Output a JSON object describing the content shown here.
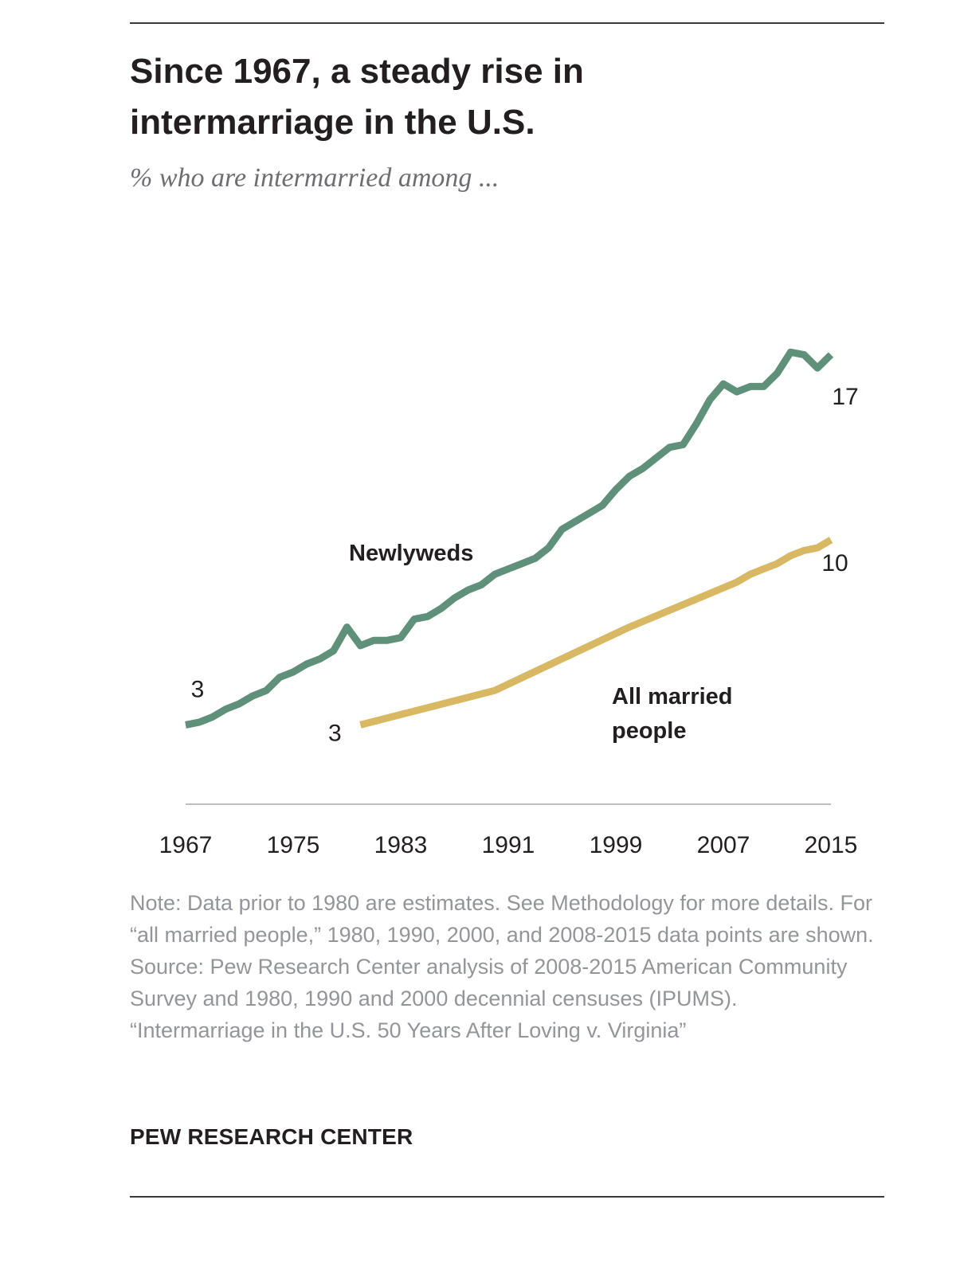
{
  "header": {
    "title": "Since 1967, a steady rise in intermarriage in the U.S.",
    "subtitle": "% who are intermarried among ..."
  },
  "chart_data": {
    "type": "line",
    "title": "Since 1967, a steady rise in intermarriage in the U.S.",
    "subtitle": "% who are intermarried among ...",
    "xlabel": "",
    "ylabel": "",
    "xlim": [
      1967,
      2015
    ],
    "ylim": [
      0,
      18
    ],
    "grid": false,
    "legend": "direct labels on lines",
    "x_ticks": [
      "1967",
      "1975",
      "1983",
      "1991",
      "1999",
      "2007",
      "2015"
    ],
    "series": [
      {
        "name": "Newlyweds",
        "color": "#5f9079",
        "start_label": "3",
        "end_label": "17",
        "x": [
          1967,
          1968,
          1969,
          1970,
          1971,
          1972,
          1973,
          1974,
          1975,
          1976,
          1977,
          1978,
          1979,
          1980,
          1981,
          1982,
          1983,
          1984,
          1985,
          1986,
          1987,
          1988,
          1989,
          1990,
          1991,
          1992,
          1993,
          1994,
          1995,
          1996,
          1997,
          1998,
          1999,
          2000,
          2001,
          2002,
          2003,
          2004,
          2005,
          2006,
          2007,
          2008,
          2009,
          2010,
          2011,
          2012,
          2013,
          2014,
          2015
        ],
        "values": [
          3.0,
          3.1,
          3.3,
          3.6,
          3.8,
          4.1,
          4.3,
          4.8,
          5.0,
          5.3,
          5.5,
          5.8,
          6.7,
          6.0,
          6.2,
          6.2,
          6.3,
          7.0,
          7.1,
          7.4,
          7.8,
          8.1,
          8.3,
          8.7,
          8.9,
          9.1,
          9.3,
          9.7,
          10.4,
          10.7,
          11.0,
          11.3,
          11.9,
          12.4,
          12.7,
          13.1,
          13.5,
          13.6,
          14.4,
          15.3,
          15.9,
          15.6,
          15.8,
          15.8,
          16.3,
          17.1,
          17.0,
          16.5,
          17.0
        ]
      },
      {
        "name": "All married people",
        "color": "#d8b863",
        "start_label": "3",
        "end_label": "10",
        "x": [
          1980,
          1990,
          2000,
          2008,
          2009,
          2010,
          2011,
          2012,
          2013,
          2014,
          2015
        ],
        "values": [
          3.0,
          4.3,
          6.7,
          8.4,
          8.7,
          8.9,
          9.1,
          9.4,
          9.6,
          9.7,
          10.0
        ]
      }
    ]
  },
  "footer": {
    "note": "Note: Data prior to 1980 are estimates. See Methodology for more details. For “all married people,” 1980, 1990, 2000, and 2008-2015 data points are shown.",
    "source": "Source: Pew Research Center analysis of 2008-2015 American Community Survey and 1980, 1990 and 2000 decennial censuses (IPUMS).",
    "report": "“Intermarriage in the U.S. 50 Years After Loving v. Virginia”",
    "org": "PEW RESEARCH CENTER"
  }
}
